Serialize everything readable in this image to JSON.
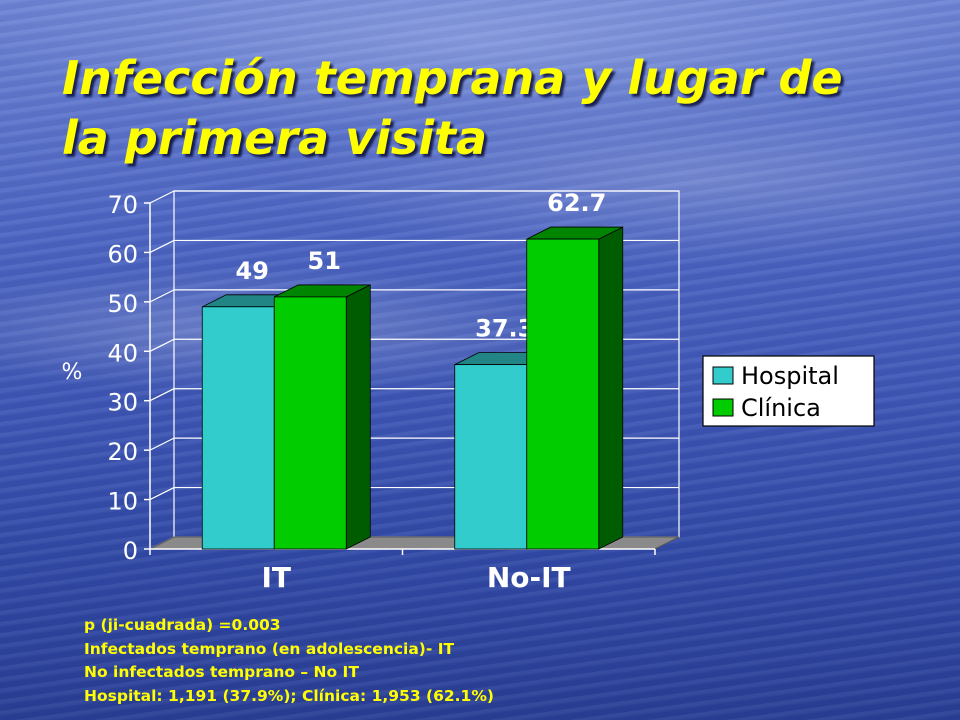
{
  "slide": {
    "title_line1": "Infección temprana y lugar de",
    "title_line2": "la primera visita"
  },
  "chart_data": {
    "type": "bar",
    "categories": [
      "IT",
      "No-IT"
    ],
    "series": [
      {
        "name": "Hospital",
        "values": [
          49,
          37.3
        ],
        "color": "#33cccc"
      },
      {
        "name": "Clínica",
        "values": [
          51,
          62.7
        ],
        "color": "#00cc00"
      }
    ],
    "data_labels": [
      [
        "49",
        "37.3"
      ],
      [
        "51",
        "62.7"
      ]
    ],
    "ylabel": "%",
    "ylim": [
      0,
      70
    ],
    "yticks": [
      0,
      10,
      20,
      30,
      40,
      50,
      60,
      70
    ],
    "grid": true,
    "legend_position": "right",
    "three_d": true
  },
  "notes": {
    "line1": "p (ji-cuadrada) =0.003",
    "line2": "Infectados temprano (en adolescencia)- IT",
    "line3": "No infectados temprano – No IT",
    "line4": "Hospital: 1,191 (37.9%); Clínica: 1,953 (62.1%)"
  }
}
